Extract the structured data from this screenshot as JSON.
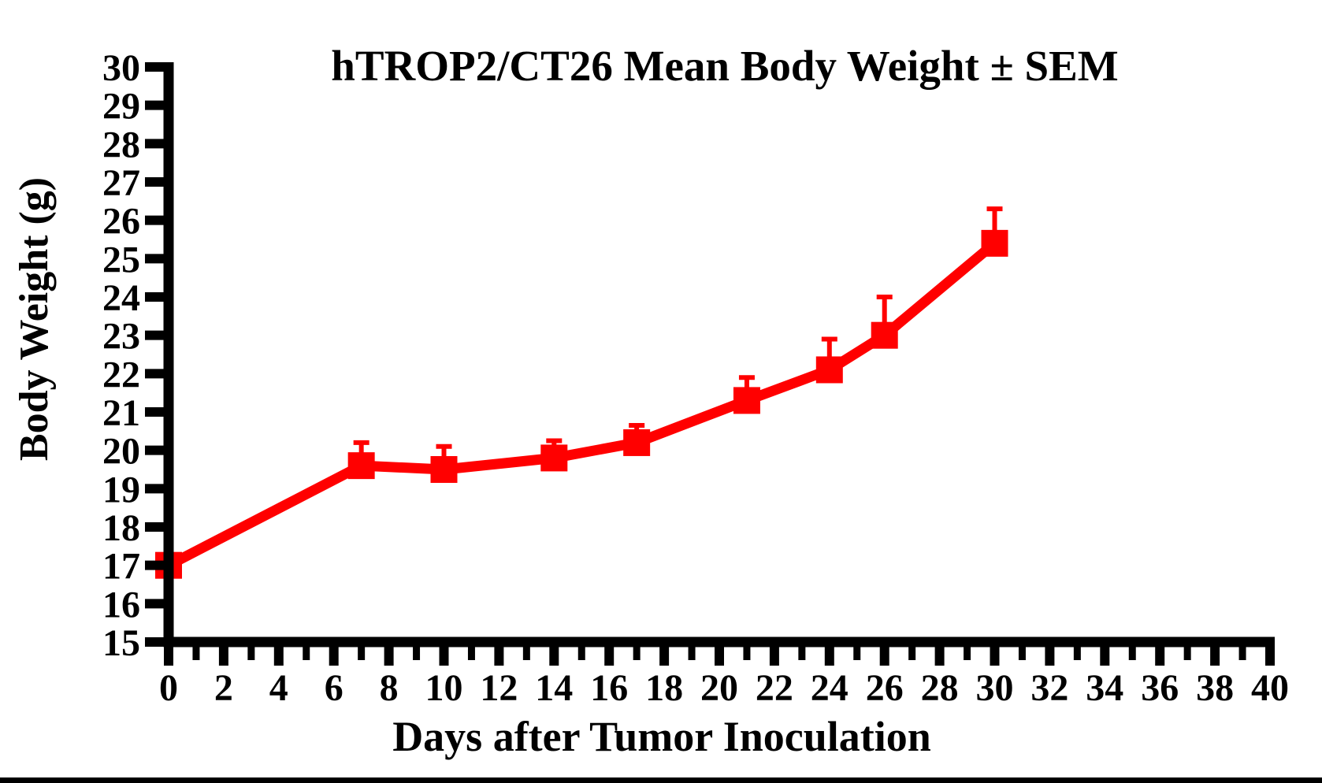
{
  "chart_data": {
    "type": "line",
    "title": "hTROP2/CT26 Mean Body Weight ± SEM",
    "xlabel": "Days after Tumor Inoculation",
    "ylabel": "Body Weight (g)",
    "x": [
      0,
      7,
      10,
      14,
      17,
      21,
      24,
      26,
      30
    ],
    "series": [
      {
        "name": "hTROP2/CT26 mean body weight",
        "values": [
          17.0,
          19.6,
          19.5,
          19.8,
          20.2,
          21.3,
          22.1,
          23.0,
          25.4
        ],
        "sem_upper": [
          0.1,
          0.6,
          0.6,
          0.45,
          0.45,
          0.6,
          0.8,
          1.0,
          0.9
        ],
        "color": "#ff0000",
        "marker": "square"
      }
    ],
    "xlim": [
      0,
      40
    ],
    "ylim": [
      15,
      30
    ],
    "x_major_ticks": [
      0,
      2,
      4,
      6,
      8,
      10,
      12,
      14,
      16,
      18,
      20,
      22,
      24,
      26,
      28,
      30,
      32,
      34,
      36,
      38,
      40
    ],
    "x_minor_ticks": [
      1,
      3,
      5,
      7,
      9,
      11,
      13,
      15,
      17,
      19,
      21,
      23,
      25,
      27,
      29,
      31,
      33,
      35,
      37,
      39
    ],
    "y_ticks": [
      15,
      16,
      17,
      18,
      19,
      20,
      21,
      22,
      23,
      24,
      25,
      26,
      27,
      28,
      29,
      30
    ],
    "grid": false,
    "legend": "none",
    "error_bars": "upper-only",
    "axis_color": "#000000"
  }
}
